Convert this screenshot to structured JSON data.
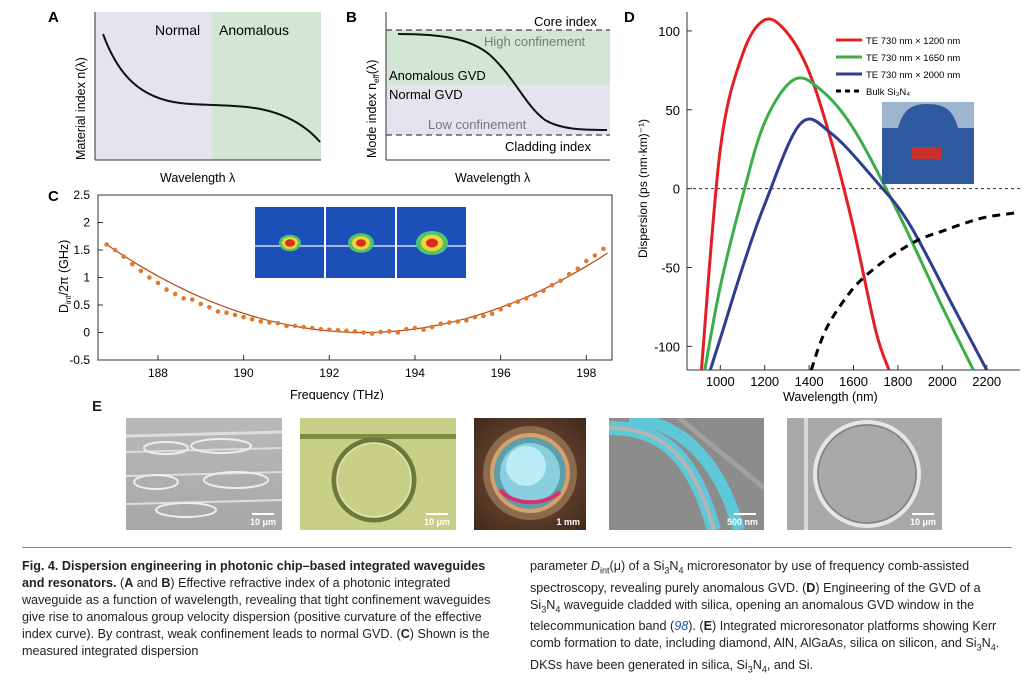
{
  "panel_letters": {
    "a": "A",
    "b": "B",
    "c": "C",
    "d": "D",
    "e": "E"
  },
  "panelA": {
    "ylabel": "Material index n(λ)",
    "xlabel": "Wavelength λ",
    "normal_label": "Normal",
    "anomalous_label": "Anomalous",
    "normal_color": "#e6e3ee",
    "anomalous_color": "#d3e6d5"
  },
  "panelB": {
    "ylabel_main": "Mode index n",
    "ylabel_sub": "eff",
    "ylabel_end": "(λ)",
    "xlabel": "Wavelength λ",
    "core_index": "Core index",
    "high_confinement": "High confinement",
    "anomalous_gvd": "Anomalous GVD",
    "normal_gvd": "Normal GVD",
    "low_confinement": "Low confinement",
    "cladding_index": "Cladding index"
  },
  "chart_data": [
    {
      "id": "C",
      "type": "scatter",
      "xlabel": "Frequency (THz)",
      "ylabel": "D_int/2π (GHz)",
      "xlim": [
        186.6,
        198.6
      ],
      "ylim": [
        -0.5,
        2.5
      ],
      "xticks": [
        188,
        190,
        192,
        194,
        196,
        198
      ],
      "yticks": [
        -0.5,
        0,
        0.5,
        1,
        1.5,
        2,
        2.5
      ],
      "ytick_labels": [
        "-0.5",
        "0",
        "0.5",
        "1",
        "1.5",
        "2",
        "2.5"
      ],
      "marker_color": "#e07a2e",
      "fit_color": "#b3471a",
      "fit": {
        "vertex_x": 192.8,
        "vertex_y": 0.0,
        "curvature": 0.0445
      },
      "series": [
        {
          "values_x": [
            186.8,
            187.0,
            187.2,
            187.4,
            187.6,
            187.8,
            188.0,
            188.2,
            188.4,
            188.6,
            188.8,
            189.0,
            189.2,
            189.4,
            189.6,
            189.8,
            190.0,
            190.2,
            190.4,
            190.6,
            190.8,
            191.0,
            191.2,
            191.4,
            191.6,
            191.8,
            192.0,
            192.2,
            192.4,
            192.6,
            192.8,
            193.0,
            193.2,
            193.4,
            193.6,
            193.8,
            194.0,
            194.2,
            194.4,
            194.6,
            194.8,
            195.0,
            195.2,
            195.4,
            195.6,
            195.8,
            196.0,
            196.2,
            196.4,
            196.6,
            196.8,
            197.0,
            197.2,
            197.4,
            197.6,
            197.8,
            198.0,
            198.2,
            198.4
          ],
          "values_y": [
            1.6,
            1.5,
            1.38,
            1.24,
            1.12,
            1.0,
            0.9,
            0.78,
            0.7,
            0.62,
            0.6,
            0.52,
            0.46,
            0.38,
            0.36,
            0.32,
            0.28,
            0.24,
            0.2,
            0.18,
            0.17,
            0.12,
            0.12,
            0.1,
            0.08,
            0.06,
            0.05,
            0.04,
            0.03,
            0.02,
            0.0,
            -0.02,
            0.01,
            0.02,
            0.0,
            0.06,
            0.08,
            0.05,
            0.1,
            0.16,
            0.18,
            0.2,
            0.22,
            0.28,
            0.3,
            0.34,
            0.42,
            0.5,
            0.56,
            0.62,
            0.68,
            0.76,
            0.86,
            0.94,
            1.06,
            1.16,
            1.3,
            1.4,
            1.52
          ]
        }
      ]
    },
    {
      "id": "D",
      "type": "line",
      "xlabel": "Wavelength (nm)",
      "ylabel": "Dispersion (ps (nm·km)⁻¹)",
      "xlim": [
        850,
        2350
      ],
      "ylim": [
        -115,
        112
      ],
      "xticks": [
        1000,
        1200,
        1400,
        1600,
        1800,
        2000,
        2200
      ],
      "yticks": [
        -100,
        -50,
        0,
        50,
        100
      ],
      "legend_position": "top-right",
      "series": [
        {
          "name": "TE 730 nm × 1200 nm",
          "color": "#e31f26",
          "dash": "solid",
          "x": [
            915,
            1000,
            1100,
            1200,
            1300,
            1400,
            1500,
            1600,
            1700,
            1760
          ],
          "y": [
            -115,
            25,
            85,
            107,
            99,
            74,
            30,
            -25,
            -90,
            -115
          ]
        },
        {
          "name": "TE 730 nm × 1650 nm",
          "color": "#3cae48",
          "dash": "solid",
          "x": [
            930,
            1000,
            1100,
            1200,
            1330,
            1450,
            1600,
            1800,
            2000,
            2140
          ],
          "y": [
            -115,
            -62,
            -5,
            42,
            69,
            63,
            38,
            -15,
            -75,
            -115
          ]
        },
        {
          "name": "TE 730 nm × 2000 nm",
          "color": "#2e3d8f",
          "dash": "solid",
          "x": [
            955,
            1000,
            1100,
            1200,
            1360,
            1500,
            1700,
            1850,
            2050,
            2200
          ],
          "y": [
            -115,
            -95,
            -50,
            -10,
            41,
            35,
            5,
            -22,
            -75,
            -115
          ]
        },
        {
          "name": "Bulk Si₃N₄",
          "color": "#000000",
          "dash": "dashed",
          "x": [
            1410,
            1450,
            1500,
            1600,
            1700,
            1800,
            1900,
            2000,
            2100,
            2200,
            2350
          ],
          "y": [
            -115,
            -98,
            -83,
            -63,
            -50,
            -40,
            -32,
            -27,
            -22,
            -18,
            -15
          ]
        }
      ]
    }
  ],
  "panelE": {
    "scale_labels": [
      "10 μm",
      "10 μm",
      "1 mm",
      "500 nm",
      "10 μm"
    ]
  },
  "caption": {
    "title": "Fig. 4. Dispersion engineering in photonic chip–based integrated waveguides and resonators.",
    "c1_a": " (",
    "c1_letters_ab": "A",
    "c1_and": " and ",
    "c1_b": "B",
    "c1_text": ") Effective refractive index of a photonic integrated waveguide as a function of wavelength, revealing that tight confinement waveguides give rise to anomalous group velocity dispersion (positive curvature of the effective index curve). By contrast, weak confinement leads to normal GVD. (",
    "c1_c": "C",
    "c1_end": ") Shown is the measured integrated dispersion",
    "c2_a": "parameter ",
    "c2_dint": "D",
    "c2_dint_sub": "int",
    "c2_mu": "(μ)",
    "c2_b": " of a Si",
    "c2_c": "N",
    "c2_d": " microresonator by use of frequency comb-assisted spectroscopy, revealing purely anomalous GVD. (",
    "c2_D": "D",
    "c2_e": ") Engineering of the GVD of a Si",
    "c2_f": "N",
    "c2_g": " waveguide cladded with silica, opening an anomalous GVD window in the telecommunication band (",
    "c2_ref": "98",
    "c2_h": "). (",
    "c2_E": "E",
    "c2_i": ") Integrated microresonator platforms showing Kerr comb formation to date, including diamond, AlN, AlGaAs, silica on silicon, and Si",
    "c2_j": "N",
    "c2_k": ". DKSs have been generated in silica, Si",
    "c2_l": "N",
    "c2_m": ", and Si.",
    "sub3": "3",
    "sub4": "4"
  }
}
